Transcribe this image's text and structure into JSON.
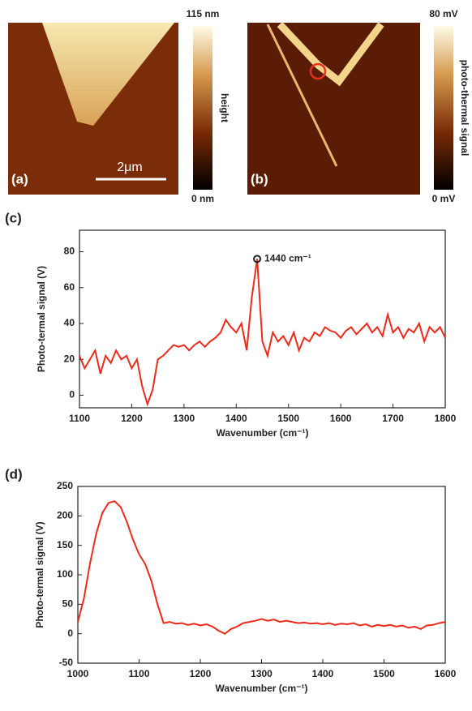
{
  "images": [
    {
      "label": "(a)",
      "scale_bar": "2μm",
      "colorbar_max": "115 nm",
      "colorbar_min": "0 nm",
      "colorbar_title": "height"
    },
    {
      "label": "(b)",
      "colorbar_max": "80 mV",
      "colorbar_min": "0 mV",
      "colorbar_title": "photo-thermal signal"
    }
  ],
  "chart_data": [
    {
      "type": "line",
      "panel_label": "(c)",
      "xlabel": "Wavenumber (cm⁻¹)",
      "ylabel": "Photo-termal signal (V)",
      "color": "#ee2a1b",
      "x": [
        1100,
        1110,
        1120,
        1130,
        1140,
        1150,
        1160,
        1170,
        1180,
        1190,
        1200,
        1210,
        1220,
        1230,
        1240,
        1250,
        1260,
        1270,
        1280,
        1290,
        1300,
        1310,
        1320,
        1330,
        1340,
        1350,
        1360,
        1370,
        1380,
        1390,
        1400,
        1410,
        1420,
        1430,
        1440,
        1450,
        1460,
        1470,
        1480,
        1490,
        1500,
        1510,
        1520,
        1530,
        1540,
        1550,
        1560,
        1570,
        1580,
        1590,
        1600,
        1610,
        1620,
        1630,
        1640,
        1650,
        1660,
        1670,
        1680,
        1690,
        1700,
        1710,
        1720,
        1730,
        1740,
        1750,
        1760,
        1770,
        1780,
        1790,
        1800
      ],
      "values": [
        22,
        15,
        20,
        25,
        12,
        22,
        18,
        25,
        20,
        22,
        15,
        20,
        5,
        -5,
        3,
        20,
        22,
        25,
        28,
        27,
        28,
        25,
        28,
        30,
        27,
        30,
        32,
        35,
        42,
        38,
        35,
        40,
        25,
        55,
        76,
        30,
        22,
        35,
        30,
        33,
        28,
        35,
        25,
        32,
        30,
        35,
        33,
        38,
        36,
        35,
        32,
        36,
        38,
        34,
        37,
        40,
        35,
        38,
        33,
        45,
        35,
        38,
        32,
        37,
        35,
        40,
        30,
        38,
        35,
        38,
        32
      ],
      "xlim": [
        1100,
        1800
      ],
      "xticks": [
        1100,
        1200,
        1300,
        1400,
        1500,
        1600,
        1700,
        1800
      ],
      "ylim": [
        -7,
        92
      ],
      "yticks": [
        0,
        20,
        40,
        60,
        80
      ],
      "annotation": {
        "text": "1440 cm⁻¹",
        "x": 1440,
        "y": 76
      }
    },
    {
      "type": "line",
      "panel_label": "(d)",
      "xlabel": "Wavenumber (cm⁻¹)",
      "ylabel": "Photo-termal signal (V)",
      "color": "#ee2a1b",
      "x": [
        1000,
        1010,
        1020,
        1030,
        1040,
        1050,
        1060,
        1070,
        1080,
        1090,
        1100,
        1110,
        1120,
        1130,
        1140,
        1150,
        1160,
        1170,
        1180,
        1190,
        1200,
        1210,
        1220,
        1230,
        1240,
        1250,
        1260,
        1270,
        1280,
        1290,
        1300,
        1310,
        1320,
        1330,
        1340,
        1350,
        1360,
        1370,
        1380,
        1390,
        1400,
        1410,
        1420,
        1430,
        1440,
        1450,
        1460,
        1470,
        1480,
        1490,
        1500,
        1510,
        1520,
        1530,
        1540,
        1550,
        1560,
        1570,
        1580,
        1590,
        1600
      ],
      "values": [
        20,
        60,
        120,
        170,
        205,
        222,
        225,
        215,
        190,
        160,
        135,
        118,
        90,
        50,
        18,
        20,
        17,
        18,
        15,
        17,
        14,
        16,
        12,
        5,
        0,
        8,
        12,
        18,
        20,
        22,
        25,
        22,
        24,
        20,
        22,
        20,
        18,
        19,
        17,
        18,
        16,
        18,
        15,
        17,
        16,
        18,
        14,
        16,
        12,
        15,
        13,
        15,
        12,
        14,
        10,
        12,
        8,
        14,
        15,
        18,
        20
      ],
      "xlim": [
        1000,
        1600
      ],
      "xticks": [
        1000,
        1100,
        1200,
        1300,
        1400,
        1500,
        1600
      ],
      "ylim": [
        -50,
        250
      ],
      "yticks": [
        -50,
        0,
        50,
        100,
        150,
        200,
        250
      ]
    }
  ]
}
